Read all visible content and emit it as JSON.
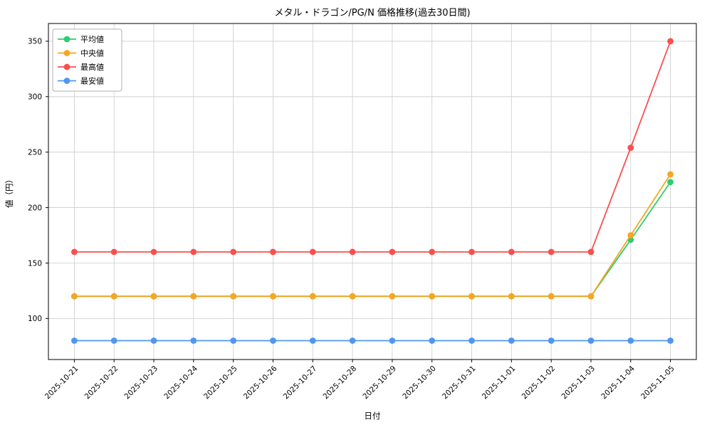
{
  "chart_data": {
    "type": "line",
    "title": "メタル・ドラゴン/PG/N 価格推移(過去30日間)",
    "xlabel": "日付",
    "ylabel": "値（円）",
    "categories": [
      "2025-10-21",
      "2025-10-22",
      "2025-10-23",
      "2025-10-24",
      "2025-10-25",
      "2025-10-26",
      "2025-10-27",
      "2025-10-28",
      "2025-10-29",
      "2025-10-30",
      "2025-10-31",
      "2025-11-01",
      "2025-11-02",
      "2025-11-03",
      "2025-11-04",
      "2025-11-05"
    ],
    "series": [
      {
        "key": "average",
        "name": "平均値",
        "color": "#2ecc71",
        "values": [
          120,
          120,
          120,
          120,
          120,
          120,
          120,
          120,
          120,
          120,
          120,
          120,
          120,
          120,
          171,
          223
        ]
      },
      {
        "key": "median",
        "name": "中央値",
        "color": "#f5a623",
        "values": [
          120,
          120,
          120,
          120,
          120,
          120,
          120,
          120,
          120,
          120,
          120,
          120,
          120,
          120,
          175,
          230
        ]
      },
      {
        "key": "max",
        "name": "最高値",
        "color": "#f94f4f",
        "values": [
          160,
          160,
          160,
          160,
          160,
          160,
          160,
          160,
          160,
          160,
          160,
          160,
          160,
          160,
          254,
          350
        ]
      },
      {
        "key": "min",
        "name": "最安値",
        "color": "#4f96f2",
        "values": [
          80,
          80,
          80,
          80,
          80,
          80,
          80,
          80,
          80,
          80,
          80,
          80,
          80,
          80,
          80,
          80
        ]
      }
    ],
    "yticks": [
      100,
      150,
      200,
      250,
      300,
      350
    ],
    "ylim": [
      63,
      366
    ],
    "grid": true,
    "grid_color": "#cccccc",
    "axis_color": "#000000",
    "legend_position": "upper left",
    "background": "#ffffff"
  }
}
